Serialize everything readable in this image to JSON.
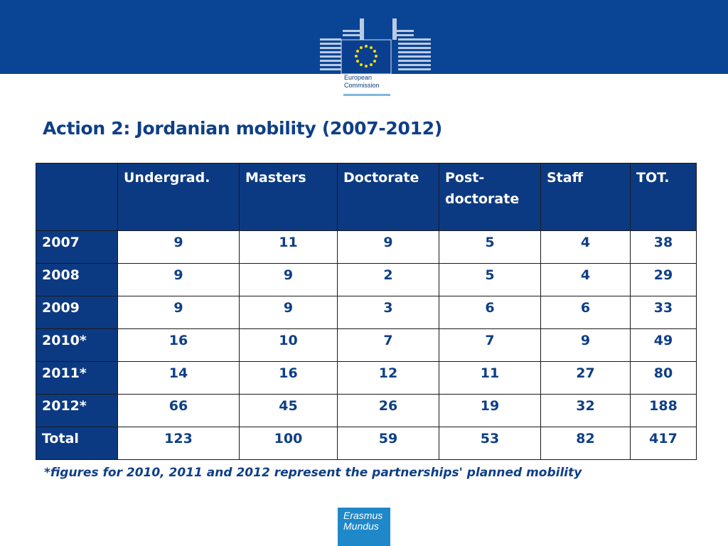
{
  "header": {
    "logo_line1": "European",
    "logo_line2": "Commission"
  },
  "title": "Action 2: Jordanian mobility (2007-2012)",
  "table": {
    "headers": [
      "",
      "Undergrad.",
      "Masters",
      "Doctorate",
      "Post-doctorate",
      "Staff",
      "TOT."
    ],
    "rows": [
      {
        "label": "2007",
        "values": [
          "9",
          "11",
          "9",
          "5",
          "4",
          "38"
        ]
      },
      {
        "label": "2008",
        "values": [
          "9",
          "9",
          "2",
          "5",
          "4",
          "29"
        ]
      },
      {
        "label": "2009",
        "values": [
          "9",
          "9",
          "3",
          "6",
          "6",
          "33"
        ]
      },
      {
        "label": "2010*",
        "values": [
          "16",
          "10",
          "7",
          "7",
          "9",
          "49"
        ]
      },
      {
        "label": "2011*",
        "values": [
          "14",
          "16",
          "12",
          "11",
          "27",
          "80"
        ]
      },
      {
        "label": "2012*",
        "values": [
          "66",
          "45",
          "26",
          "19",
          "32",
          "188"
        ]
      },
      {
        "label": "Total",
        "values": [
          "123",
          "100",
          "59",
          "53",
          "82",
          "417"
        ]
      }
    ]
  },
  "footnote": "*figures for 2010, 2011 and 2012 represent the partnerships' planned mobility",
  "footer_logo": {
    "line1": "Erasmus",
    "line2": "Mundus"
  },
  "colors": {
    "brand_blue": "#0a4494",
    "header_cell": "#0c3a82",
    "text_blue": "#0e3f86",
    "erasmus_blue": "#1e88c8"
  }
}
